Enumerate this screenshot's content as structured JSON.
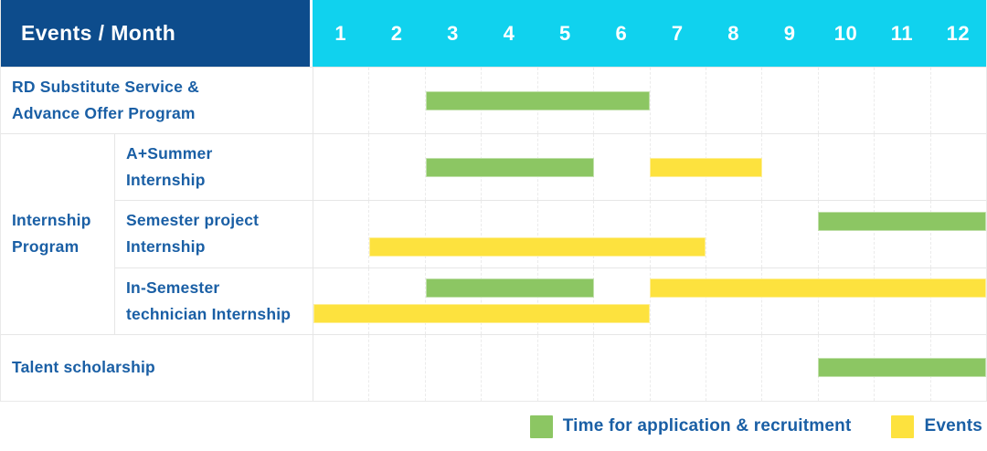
{
  "header": {
    "title": "Events / Month",
    "months": [
      "1",
      "2",
      "3",
      "4",
      "5",
      "6",
      "7",
      "8",
      "9",
      "10",
      "11",
      "12"
    ]
  },
  "colors": {
    "navy": "#0d4c8c",
    "cyan": "#10d2ee",
    "green": "#8cc663",
    "yellow": "#fde23e",
    "text": "#1a5fa5",
    "grid": "#e6e6e6"
  },
  "legend": [
    {
      "color_key": "green",
      "label": "Time for application & recruitment"
    },
    {
      "color_key": "yellow",
      "label": "Events"
    }
  ],
  "chart_data": {
    "type": "gantt",
    "x_unit": "month",
    "x_range": [
      1,
      12
    ],
    "grid": true,
    "legend_position": "bottom-right",
    "bar_meaning": {
      "green": "Time for application & recruitment",
      "yellow": "Events"
    },
    "rows": [
      {
        "group": null,
        "label": "RD Substitute Service &\nAdvance Offer Program",
        "lines": [
          [
            {
              "color": "green",
              "start": 3,
              "end": 6
            }
          ]
        ]
      },
      {
        "group": "Internship\nProgram",
        "label": "A+Summer\nInternship",
        "lines": [
          [
            {
              "color": "green",
              "start": 3,
              "end": 5
            },
            {
              "color": "yellow",
              "start": 7,
              "end": 8
            }
          ]
        ]
      },
      {
        "group": "Internship\nProgram",
        "label": "Semester project\nInternship",
        "lines": [
          [
            {
              "color": "green",
              "start": 10,
              "end": 12
            }
          ],
          [
            {
              "color": "yellow",
              "start": 2,
              "end": 7
            }
          ]
        ]
      },
      {
        "group": "Internship\nProgram",
        "label": "In-Semester\ntechnician Internship",
        "lines": [
          [
            {
              "color": "green",
              "start": 3,
              "end": 5
            },
            {
              "color": "yellow",
              "start": 7,
              "end": 12
            }
          ],
          [
            {
              "color": "yellow",
              "start": 1,
              "end": 6
            }
          ]
        ]
      },
      {
        "group": null,
        "label": "Talent scholarship",
        "lines": [
          [
            {
              "color": "green",
              "start": 10,
              "end": 12
            }
          ]
        ]
      }
    ]
  }
}
